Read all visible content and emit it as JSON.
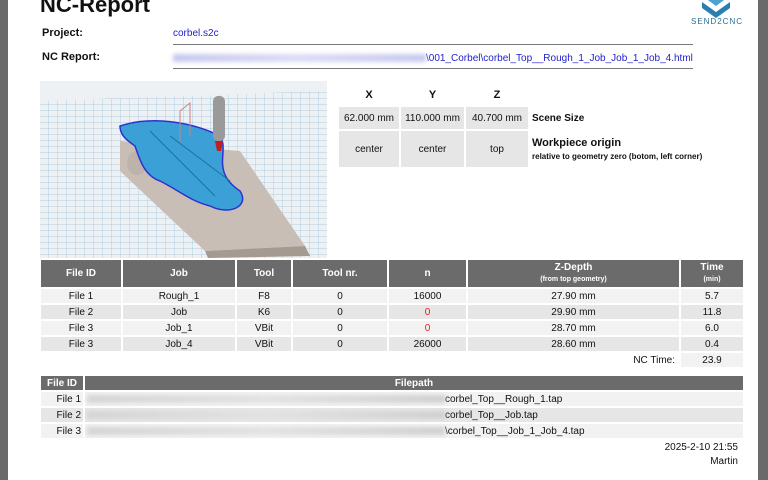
{
  "header": {
    "title": "NC-Report",
    "logo_text": "SEND2CNC"
  },
  "info": {
    "project_label": "Project:",
    "project_value": "corbel.s2c",
    "report_label": "NC Report:",
    "report_value_visible": "\\001_Corbel\\corbel_Top__Rough_1_Job_Job_1_Job_4.html"
  },
  "scene": {
    "headers": [
      "X",
      "Y",
      "Z"
    ],
    "size": [
      "62.000 mm",
      "110.000 mm",
      "40.700 mm"
    ],
    "origin": [
      "center",
      "center",
      "top"
    ],
    "size_label": "Scene Size",
    "origin_label": "Workpiece origin",
    "origin_note": "relative to geometry zero (botom, left corner)"
  },
  "jobs": {
    "headers": {
      "file_id": "File ID",
      "job": "Job",
      "tool": "Tool",
      "tool_nr": "Tool nr.",
      "n": "n",
      "zdepth": "Z-Depth",
      "zdepth_sub": "(from top geometry)",
      "time": "Time",
      "time_sub": "(min)"
    },
    "rows": [
      {
        "file": "File 1",
        "job": "Rough_1",
        "tool": "F8",
        "tool_nr": "0",
        "n": "16000",
        "zdepth": "27.90 mm",
        "time": "5.7"
      },
      {
        "file": "File 2",
        "job": "Job",
        "tool": "K6",
        "tool_nr": "0",
        "n": "0",
        "zdepth": "29.90 mm",
        "time": "11.8"
      },
      {
        "file": "File 3",
        "job": "Job_1",
        "tool": "VBit",
        "tool_nr": "0",
        "n": "0",
        "zdepth": "28.70 mm",
        "time": "6.0"
      },
      {
        "file": "File 3",
        "job": "Job_4",
        "tool": "VBit",
        "tool_nr": "0",
        "n": "26000",
        "zdepth": "28.60 mm",
        "time": "0.4"
      }
    ],
    "total_label": "NC Time:",
    "total_value": "23.9",
    "warning_color": "#e02020"
  },
  "files": {
    "headers": {
      "file_id": "File ID",
      "path": "Filepath"
    },
    "rows": [
      {
        "file": "File 1",
        "path_visible": "corbel_Top__Rough_1.tap"
      },
      {
        "file": "File 2",
        "path_visible": "corbel_Top__Job.tap"
      },
      {
        "file": "File 3",
        "path_visible": "\\corbel_Top__Job_1_Job_4.tap"
      }
    ]
  },
  "footer": {
    "date": "2025-2-10 21:55",
    "author": "Martin"
  }
}
